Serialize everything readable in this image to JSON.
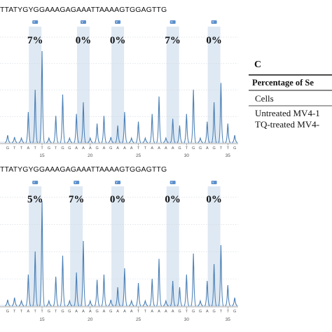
{
  "chart_data": [
    {
      "type": "line",
      "sequence_label": "TTATYGYGGAAAGAGAAATTAAAAGTGGAGTTG",
      "percent_labels": [
        "7%",
        "0%",
        "0%",
        "7%",
        "0%"
      ],
      "percent_tags": [
        "Y",
        "Y",
        "Y",
        "Y",
        "Y"
      ],
      "x_ticks": [
        "15",
        "20",
        "25",
        "30",
        "35"
      ],
      "bases": [
        "G",
        "T",
        "T",
        "A",
        "T",
        "T",
        "G",
        "T",
        "G",
        "G",
        "A",
        "A",
        "A",
        "G",
        "A",
        "G",
        "A",
        "A",
        "A",
        "T",
        "T",
        "A",
        "A",
        "A",
        "A",
        "G",
        "T",
        "G",
        "G",
        "A",
        "G",
        "T",
        "T",
        "G"
      ],
      "peaks": [
        0.08,
        0.06,
        0.05,
        0.32,
        0.55,
        0.95,
        0.05,
        0.28,
        0.5,
        0.05,
        0.3,
        0.42,
        0.05,
        0.2,
        0.28,
        0.06,
        0.18,
        0.32,
        0.05,
        0.22,
        0.05,
        0.3,
        0.48,
        0.05,
        0.25,
        0.18,
        0.3,
        0.55,
        0.05,
        0.22,
        0.42,
        0.62,
        0.2,
        0.08
      ]
    },
    {
      "type": "line",
      "sequence_label": "TTATYGYGGAAAGAGAAATTAAAAGTGGAGTTG",
      "percent_labels": [
        "5%",
        "7%",
        "0%",
        "0%",
        "0%"
      ],
      "percent_tags": [
        "Y",
        "Y",
        "Y",
        "Y",
        "Y"
      ],
      "x_ticks": [
        "15",
        "20",
        "25",
        "30",
        "35"
      ],
      "bases": [
        "G",
        "T",
        "T",
        "A",
        "T",
        "T",
        "G",
        "T",
        "G",
        "G",
        "A",
        "A",
        "A",
        "G",
        "A",
        "G",
        "A",
        "A",
        "A",
        "T",
        "T",
        "A",
        "A",
        "A",
        "A",
        "G",
        "T",
        "G",
        "G",
        "A",
        "G",
        "T",
        "T",
        "G"
      ],
      "peaks": [
        0.06,
        0.08,
        0.05,
        0.3,
        0.52,
        1.0,
        0.05,
        0.28,
        0.48,
        0.05,
        0.32,
        0.62,
        0.05,
        0.25,
        0.3,
        0.06,
        0.18,
        0.36,
        0.05,
        0.22,
        0.05,
        0.26,
        0.45,
        0.05,
        0.24,
        0.18,
        0.3,
        0.5,
        0.05,
        0.24,
        0.4,
        0.58,
        0.2,
        0.08
      ]
    }
  ],
  "table": {
    "panel_label": "C",
    "header": "Percentage of Se",
    "rows": [
      "Cells",
      "Untreated MV4-1",
      "TQ-treated MV4-"
    ]
  },
  "colors": {
    "trace": "#4a7fb5",
    "highlight": "#dfe9f3",
    "tag": "#5b8fcc",
    "axis": "#888888"
  }
}
